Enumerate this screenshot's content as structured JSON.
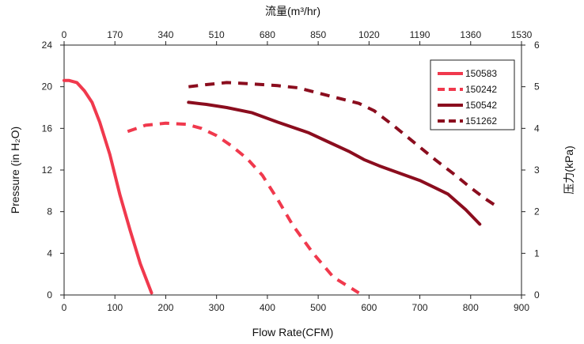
{
  "chart_data": {
    "type": "line",
    "top_xlabel": "流量(m³/hr)",
    "xlabel": "Flow Rate(CFM)",
    "ylabel": "Pressure (in H₂O)",
    "right_ylabel": "压力(kPa)",
    "xlim": [
      0,
      900
    ],
    "ylim": [
      0,
      24
    ],
    "right_ylim": [
      0,
      6
    ],
    "xticks": [
      0,
      100,
      200,
      300,
      400,
      500,
      600,
      700,
      800,
      900
    ],
    "top_xticks": [
      "0",
      "170",
      "340",
      "510",
      "680",
      "850",
      "1020",
      "1190",
      "1360",
      "1530"
    ],
    "yticks": [
      0,
      4,
      8,
      12,
      16,
      20,
      24
    ],
    "right_yticks": [
      0,
      1,
      2,
      3,
      4,
      5,
      6
    ],
    "legend_position": "top-right",
    "grid": false,
    "series": [
      {
        "name": "150583",
        "color": "#f0394d",
        "style": "solid",
        "points": [
          [
            0,
            20.6
          ],
          [
            10,
            20.6
          ],
          [
            25,
            20.4
          ],
          [
            40,
            19.6
          ],
          [
            55,
            18.5
          ],
          [
            70,
            16.6
          ],
          [
            90,
            13.5
          ],
          [
            110,
            9.6
          ],
          [
            130,
            6.2
          ],
          [
            150,
            3.0
          ],
          [
            172,
            0.2
          ]
        ]
      },
      {
        "name": "150242",
        "color": "#f0394d",
        "style": "dashed",
        "points": [
          [
            125,
            15.7
          ],
          [
            160,
            16.3
          ],
          [
            200,
            16.5
          ],
          [
            240,
            16.4
          ],
          [
            270,
            16.0
          ],
          [
            300,
            15.3
          ],
          [
            330,
            14.3
          ],
          [
            360,
            13.1
          ],
          [
            390,
            11.5
          ],
          [
            420,
            9.2
          ],
          [
            450,
            6.7
          ],
          [
            490,
            4.0
          ],
          [
            530,
            1.7
          ],
          [
            580,
            0.2
          ]
        ]
      },
      {
        "name": "150542",
        "color": "#8b0d1e",
        "style": "solid",
        "points": [
          [
            245,
            18.5
          ],
          [
            280,
            18.3
          ],
          [
            320,
            18.0
          ],
          [
            370,
            17.5
          ],
          [
            420,
            16.6
          ],
          [
            480,
            15.6
          ],
          [
            520,
            14.7
          ],
          [
            560,
            13.8
          ],
          [
            590,
            13.0
          ],
          [
            620,
            12.4
          ],
          [
            660,
            11.7
          ],
          [
            700,
            11.0
          ],
          [
            730,
            10.3
          ],
          [
            755,
            9.7
          ],
          [
            790,
            8.2
          ],
          [
            818,
            6.8
          ]
        ]
      },
      {
        "name": "151262",
        "color": "#8b0d1e",
        "style": "dashed",
        "points": [
          [
            245,
            20.0
          ],
          [
            280,
            20.2
          ],
          [
            320,
            20.4
          ],
          [
            360,
            20.3
          ],
          [
            420,
            20.1
          ],
          [
            460,
            19.9
          ],
          [
            500,
            19.4
          ],
          [
            540,
            18.9
          ],
          [
            580,
            18.4
          ],
          [
            610,
            17.7
          ],
          [
            650,
            16.2
          ],
          [
            690,
            14.6
          ],
          [
            730,
            13.0
          ],
          [
            770,
            11.5
          ],
          [
            800,
            10.3
          ],
          [
            830,
            9.2
          ],
          [
            855,
            8.4
          ]
        ]
      }
    ]
  }
}
